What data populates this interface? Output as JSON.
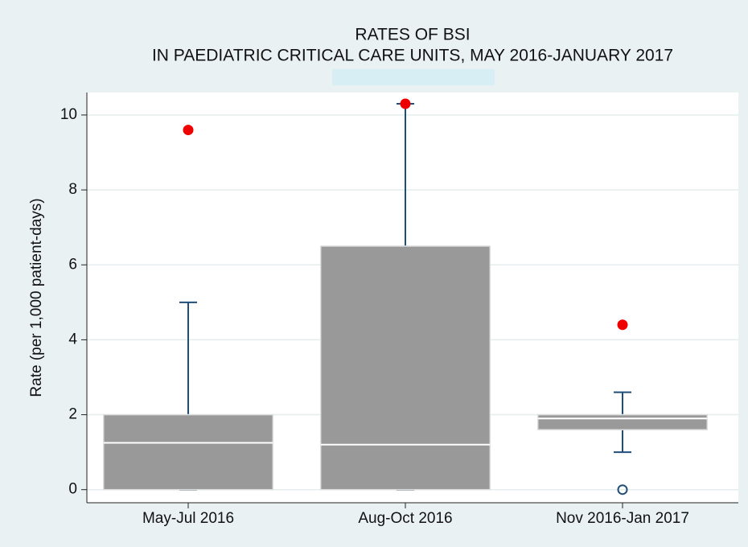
{
  "chart_data": {
    "type": "box",
    "title": [
      "RATES OF BSI",
      "IN PAEDIATRIC CRITICAL CARE UNITS, MAY 2016-JANUARY 2017"
    ],
    "y_label": "Rate (per 1,000 patient-days)",
    "categories": [
      "May-Jul 2016",
      "Aug-Oct 2016",
      "Nov 2016-Jan 2017"
    ],
    "whisker_low": [
      0,
      0,
      1.0
    ],
    "q1": [
      0,
      0,
      1.6
    ],
    "median": [
      1.25,
      1.2,
      1.9
    ],
    "q3": [
      2.0,
      6.5,
      2.0
    ],
    "whisker_high": [
      5.0,
      10.3,
      2.6
    ],
    "outliers": [
      [
        9.6
      ],
      [
        10.3
      ],
      [
        4.4,
        0
      ]
    ],
    "outlier_fill": [
      [
        "#ee0000"
      ],
      [
        "#ee0000"
      ],
      [
        "#ee0000",
        "none"
      ]
    ],
    "box_color": "#999999",
    "whisker_color": "#1f4e79",
    "median_color": "#ffffff",
    "ylim": [
      -0.35,
      10.6
    ],
    "yticks": [
      0,
      2,
      4,
      6,
      8,
      10
    ],
    "grid": true
  }
}
